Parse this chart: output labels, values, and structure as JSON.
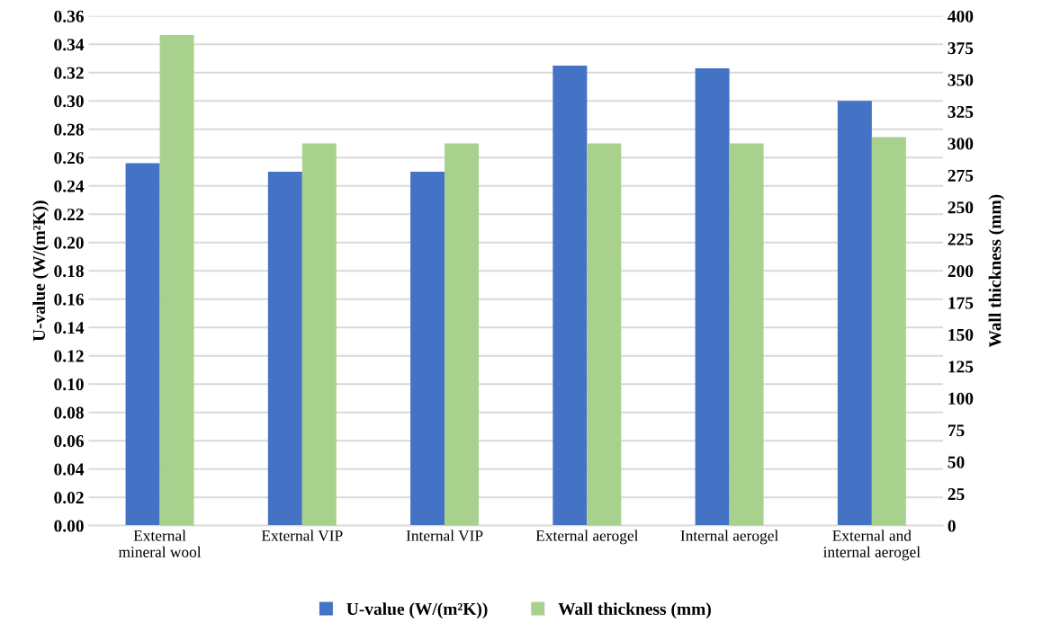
{
  "chart_data": {
    "type": "bar",
    "categories": [
      "External mineral wool",
      "External VIP",
      "Internal VIP",
      "External aerogel",
      "Internal aerogel",
      "External and internal aerogel"
    ],
    "ylabel": "U-value (W/(m²K))",
    "y2label": "Wall thickness (mm)",
    "series": [
      {
        "name": "U-value (W/(m²K))",
        "color": "#4472c4",
        "values": [
          0.256,
          0.25,
          0.25,
          0.325,
          0.323,
          0.3
        ]
      },
      {
        "name": "Wall thickness (mm)",
        "color": "#a9d18e",
        "axis": "y2",
        "values": [
          385,
          300,
          300,
          300,
          300,
          305
        ]
      }
    ],
    "ylim": [
      0,
      0.36
    ],
    "yticks": [
      {
        "value": 0,
        "label": "0.00"
      },
      {
        "value": 0.02,
        "label": "0.02"
      },
      {
        "value": 0.04,
        "label": "0.04"
      },
      {
        "value": 0.06,
        "label": "0.06"
      },
      {
        "value": 0.08,
        "label": "0.08"
      },
      {
        "value": 0.1,
        "label": "0.10"
      },
      {
        "value": 0.12,
        "label": "0.12"
      },
      {
        "value": 0.14,
        "label": "0.14"
      },
      {
        "value": 0.16,
        "label": "0.16"
      },
      {
        "value": 0.18,
        "label": "0.18"
      },
      {
        "value": 0.2,
        "label": "0.20"
      },
      {
        "value": 0.22,
        "label": "0.22"
      },
      {
        "value": 0.24,
        "label": "0.24"
      },
      {
        "value": 0.26,
        "label": "0.26"
      },
      {
        "value": 0.28,
        "label": "0.28"
      },
      {
        "value": 0.3,
        "label": "0.30"
      },
      {
        "value": 0.32,
        "label": "0.32"
      },
      {
        "value": 0.34,
        "label": "0.34"
      },
      {
        "value": 0.36,
        "label": "0.36"
      }
    ],
    "y2lim": [
      0,
      400
    ],
    "y2ticks": [
      0,
      25,
      50,
      75,
      100,
      125,
      150,
      175,
      200,
      225,
      250,
      275,
      300,
      325,
      350,
      375,
      400
    ],
    "grid": "y",
    "legend": "bottom"
  }
}
